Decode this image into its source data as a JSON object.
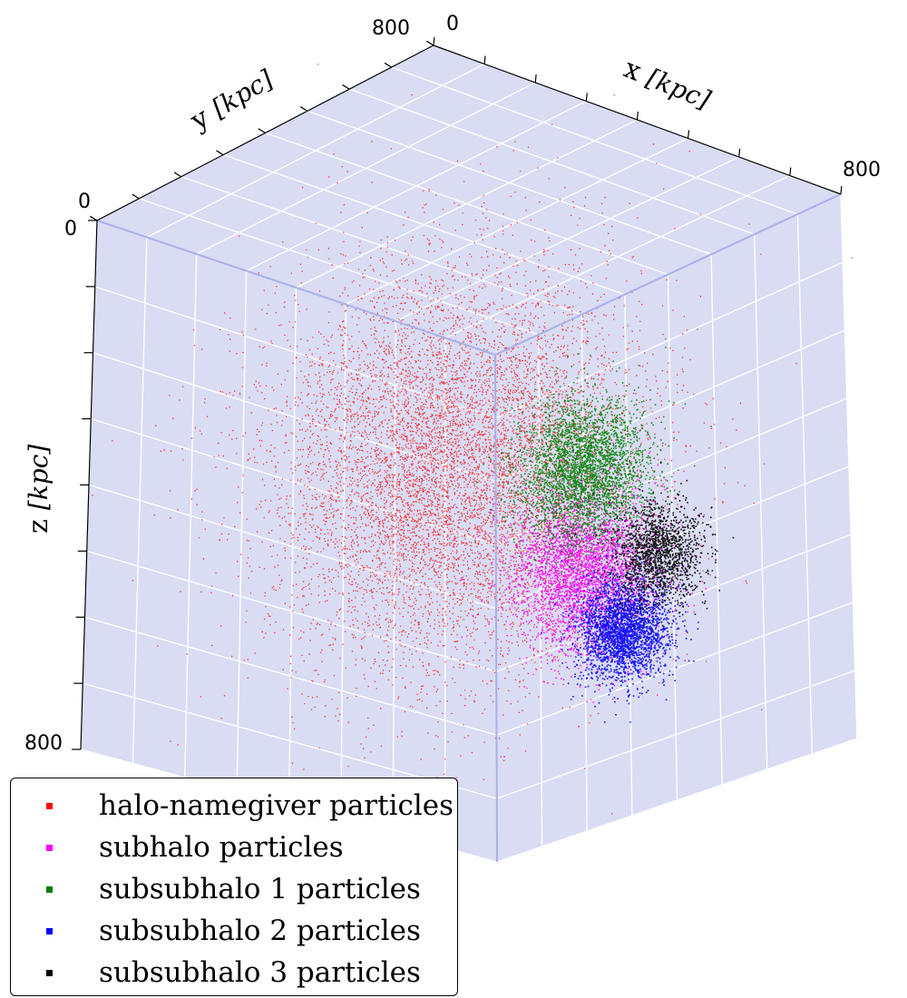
{
  "chart_data": {
    "type": "scatter",
    "projection": "3d",
    "title": "",
    "axes": {
      "x": {
        "label": "x",
        "unit": "[kpc]",
        "range": [
          0,
          800
        ],
        "tick_labels": [
          "0",
          "800"
        ]
      },
      "y": {
        "label": "y",
        "unit": "[kpc]",
        "range": [
          0,
          800
        ],
        "tick_labels": [
          "0",
          "800"
        ]
      },
      "z": {
        "label": "z",
        "unit": "[kpc]",
        "range": [
          0,
          800
        ],
        "tick_labels": [
          "0",
          "800"
        ],
        "inverted": true
      }
    },
    "grid": true,
    "pane_color": "#d9dcf3",
    "legend": {
      "placement": "bottom-left"
    },
    "series": [
      {
        "name": "halo-namegiver particles",
        "color": "#ff0000",
        "center": [
          400,
          400,
          400
        ],
        "spread_kpc": 140
      },
      {
        "name": "subhalo particles",
        "color": "#ff00ff",
        "center": [
          560,
          520,
          560
        ],
        "spread_kpc": 55
      },
      {
        "name": "subsubhalo 1 particles",
        "color": "#008000",
        "center": [
          520,
          560,
          430
        ],
        "spread_kpc": 50
      },
      {
        "name": "subsubhalo 2 particles",
        "color": "#0000ff",
        "center": [
          610,
          560,
          650
        ],
        "spread_kpc": 35
      },
      {
        "name": "subsubhalo 3 particles",
        "color": "#000000",
        "center": [
          640,
          600,
          540
        ],
        "spread_kpc": 35
      }
    ]
  }
}
